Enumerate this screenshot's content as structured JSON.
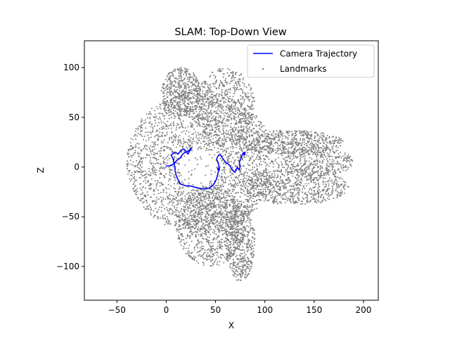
{
  "chart_data": {
    "type": "scatter",
    "title": "SLAM: Top-Down View",
    "xlabel": "X",
    "ylabel": "Z",
    "xlim": [
      -83,
      215
    ],
    "ylim": [
      -134,
      127
    ],
    "xticks": [
      -50,
      0,
      50,
      100,
      150,
      200
    ],
    "yticks": [
      -100,
      -50,
      0,
      50,
      100
    ],
    "xtick_labels": [
      "−50",
      "0",
      "50",
      "100",
      "150",
      "200"
    ],
    "ytick_labels": [
      "−100",
      "−50",
      "0",
      "50",
      "100"
    ],
    "grid": false,
    "legend_position": "top-right",
    "series": [
      {
        "name": "Camera Trajectory",
        "kind": "line",
        "color": "#0000ff",
        "x": [
          0,
          3,
          6,
          8,
          7,
          5,
          9,
          12,
          15,
          18,
          20,
          22,
          24,
          26,
          22,
          18,
          16,
          14,
          10,
          8,
          9,
          9,
          10,
          12,
          14,
          17,
          20,
          24,
          28,
          32,
          36,
          40,
          44,
          47,
          49,
          51,
          52,
          53,
          52,
          54,
          53,
          51,
          53,
          55,
          57,
          60,
          64,
          67,
          69,
          71,
          72,
          74,
          75,
          74,
          76,
          77,
          78,
          80,
          79,
          78,
          80
        ],
        "y": [
          1,
          1,
          2,
          4,
          8,
          12,
          15,
          13,
          17,
          18,
          16,
          13,
          17,
          19,
          16,
          14,
          12,
          9,
          6,
          3,
          0,
          -4,
          -8,
          -13,
          -17,
          -18,
          -19,
          -19,
          -20,
          -21,
          -22,
          -22,
          -21,
          -19,
          -16,
          -12,
          -8,
          -4,
          -1,
          -3,
          3,
          8,
          12,
          12,
          9,
          5,
          2,
          -3,
          -5,
          -3,
          0,
          -3,
          1,
          5,
          9,
          12,
          14,
          15,
          12,
          14,
          13
        ]
      },
      {
        "name": "Landmarks",
        "kind": "scatter",
        "color": "#808080",
        "description_regions": [
          {
            "cx": 35,
            "cy": 5,
            "rx": 75,
            "ry": 72,
            "n": 2600
          },
          {
            "cx": 45,
            "cy": -60,
            "rx": 35,
            "ry": 40,
            "n": 900
          },
          {
            "cx": 75,
            "cy": -75,
            "rx": 15,
            "ry": 40,
            "n": 500
          },
          {
            "cx": 125,
            "cy": 25,
            "rx": 55,
            "ry": 12,
            "n": 600
          },
          {
            "cx": 130,
            "cy": -20,
            "rx": 55,
            "ry": 18,
            "n": 700
          },
          {
            "cx": 150,
            "cy": 5,
            "rx": 40,
            "ry": 15,
            "n": 400
          },
          {
            "cx": 60,
            "cy": 60,
            "rx": 30,
            "ry": 40,
            "n": 600
          },
          {
            "cx": 15,
            "cy": 75,
            "rx": 20,
            "ry": 25,
            "n": 500
          }
        ]
      }
    ]
  }
}
